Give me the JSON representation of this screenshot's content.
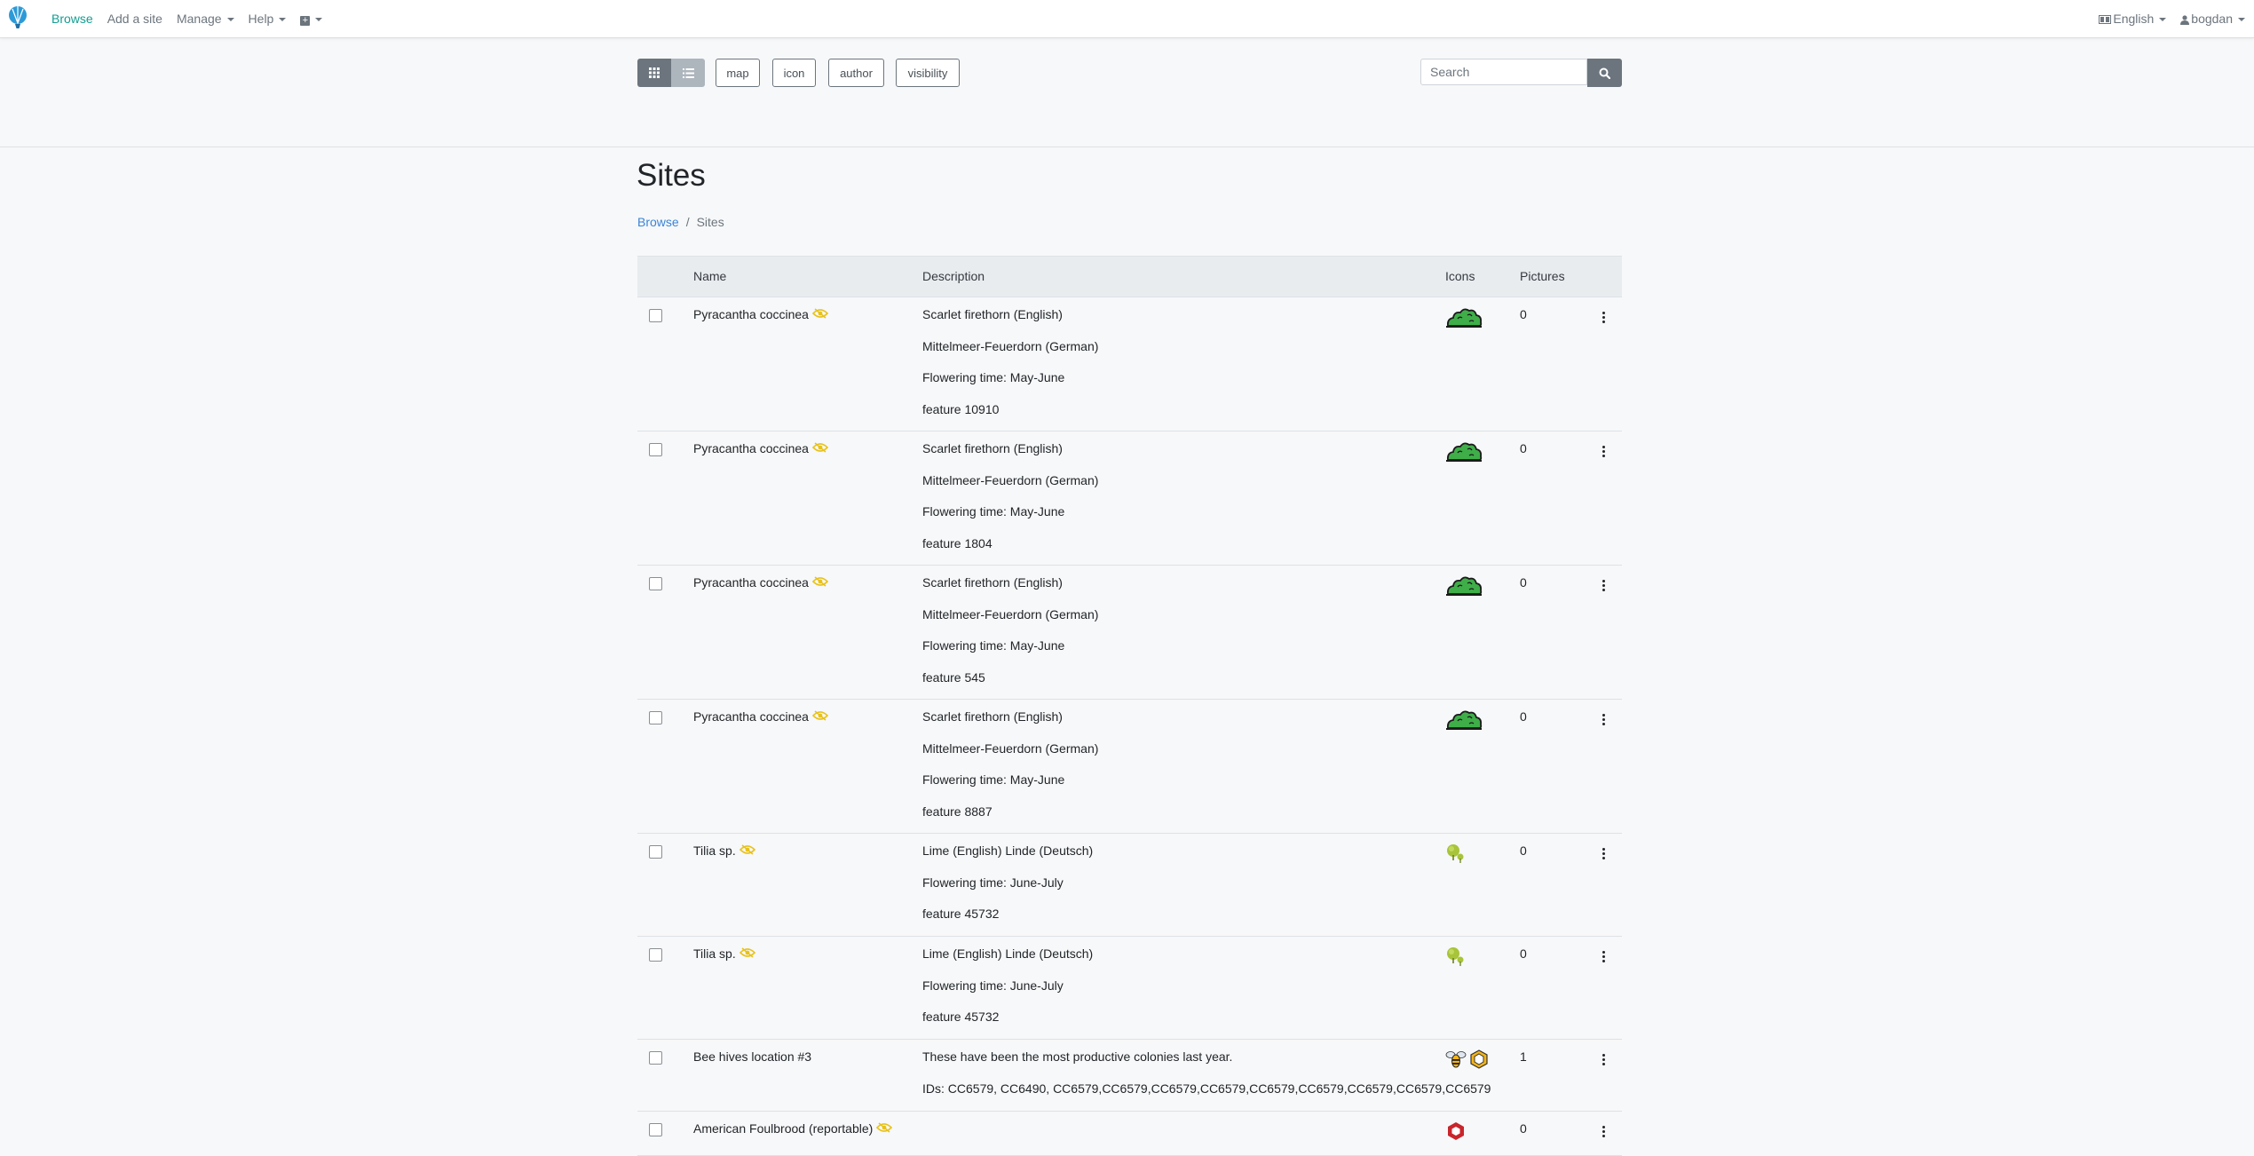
{
  "nav": {
    "browse": "Browse",
    "add_site": "Add a site",
    "manage": "Manage",
    "help": "Help",
    "language": "English",
    "user": "bogdan"
  },
  "toolbar": {
    "filters": [
      "map",
      "icon",
      "author",
      "visibility"
    ],
    "search_placeholder": "Search"
  },
  "page": {
    "title": "Sites",
    "breadcrumb": {
      "link": "Browse",
      "separator": "/",
      "current": "Sites"
    }
  },
  "table": {
    "headers": {
      "name": "Name",
      "description": "Description",
      "icons": "Icons",
      "pictures": "Pictures"
    },
    "rows": [
      {
        "name": "Pyracantha coccinea",
        "hidden": true,
        "description": [
          "Scarlet firethorn (English)",
          "Mittelmeer-Feuerdorn (German)",
          "Flowering time: May-June",
          "feature 10910"
        ],
        "icons": [
          "bush-icon"
        ],
        "pictures": "0"
      },
      {
        "name": "Pyracantha coccinea",
        "hidden": true,
        "description": [
          "Scarlet firethorn (English)",
          "Mittelmeer-Feuerdorn (German)",
          "Flowering time: May-June",
          "feature 1804"
        ],
        "icons": [
          "bush-icon"
        ],
        "pictures": "0"
      },
      {
        "name": "Pyracantha coccinea",
        "hidden": true,
        "description": [
          "Scarlet firethorn (English)",
          "Mittelmeer-Feuerdorn (German)",
          "Flowering time: May-June",
          "feature 545"
        ],
        "icons": [
          "bush-icon"
        ],
        "pictures": "0"
      },
      {
        "name": "Pyracantha coccinea",
        "hidden": true,
        "description": [
          "Scarlet firethorn (English)",
          "Mittelmeer-Feuerdorn (German)",
          "Flowering time: May-June",
          "feature 8887"
        ],
        "icons": [
          "bush-icon"
        ],
        "pictures": "0"
      },
      {
        "name": "Tilia sp.",
        "hidden": true,
        "description": [
          "Lime (English) Linde (Deutsch)",
          "Flowering time: June-July",
          "feature 45732"
        ],
        "icons": [
          "tree-icon"
        ],
        "pictures": "0"
      },
      {
        "name": "Tilia sp.",
        "hidden": true,
        "description": [
          "Lime (English) Linde (Deutsch)",
          "Flowering time: June-July",
          "feature 45732"
        ],
        "icons": [
          "tree-icon"
        ],
        "pictures": "0"
      },
      {
        "name": "Bee hives location #3",
        "hidden": false,
        "description": [
          "These have been the most productive colonies last year.",
          "IDs: CC6579, CC6490, CC6579,CC6579,CC6579,CC6579,CC6579,CC6579,CC6579,CC6579,CC6579"
        ],
        "icons": [
          "bee-icon",
          "hive-icon"
        ],
        "pictures": "1"
      },
      {
        "name": "American Foulbrood (reportable)",
        "hidden": true,
        "description": [],
        "icons": [
          "warning-hexagon-icon"
        ],
        "pictures": "0"
      }
    ]
  },
  "colors": {
    "accent": "#129e92",
    "link": "#3a84d8",
    "bush_green": "#3fae49",
    "hidden_yellow": "#e8c21c",
    "alert_red": "#c9252c"
  }
}
